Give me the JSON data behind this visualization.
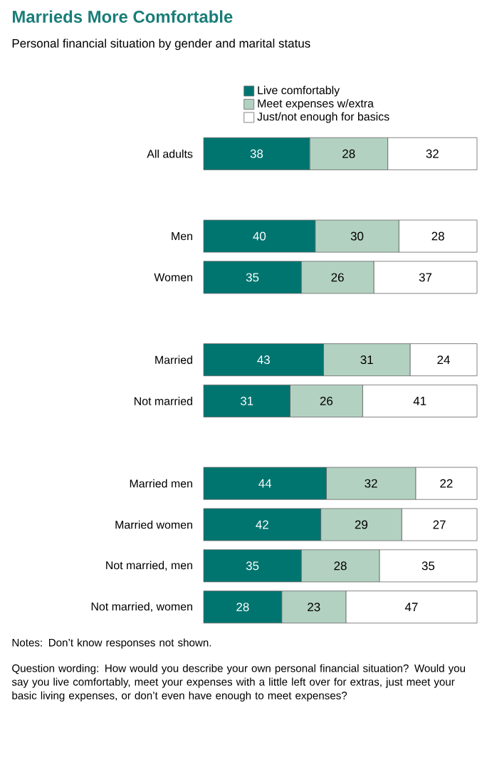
{
  "chart_data": {
    "type": "bar",
    "orientation": "horizontal",
    "stacked": true,
    "title": "Marrieds More Comfortable",
    "subtitle": "Personal financial situation by gender and marital status",
    "categories": [
      "All adults",
      null,
      "Men",
      "Women",
      null,
      "Married",
      "Not married",
      null,
      "Married men",
      "Married women",
      "Not married, men",
      "Not married, women"
    ],
    "series": [
      {
        "name": "Live comfortably",
        "color": "#007570",
        "values": [
          38,
          null,
          40,
          35,
          null,
          43,
          31,
          null,
          44,
          42,
          35,
          28
        ]
      },
      {
        "name": "Meet expenses w/extra",
        "color": "#b3d1c1",
        "values": [
          28,
          null,
          30,
          26,
          null,
          31,
          26,
          null,
          32,
          29,
          28,
          23
        ]
      },
      {
        "name": "Just/not enough for basics",
        "color": "#ffffff",
        "values": [
          32,
          null,
          28,
          37,
          null,
          24,
          41,
          null,
          22,
          27,
          35,
          47
        ]
      }
    ],
    "data_labels": true,
    "legend": "top",
    "annotations": [
      "Notes: Don’t know responses not shown.",
      "Question wording: How would you describe your own personal financial situation? Would you say you live comfortably, meet your expenses with a little left over for extras, just meet your basic living expenses, or don’t even have enough to meet expenses?"
    ]
  }
}
